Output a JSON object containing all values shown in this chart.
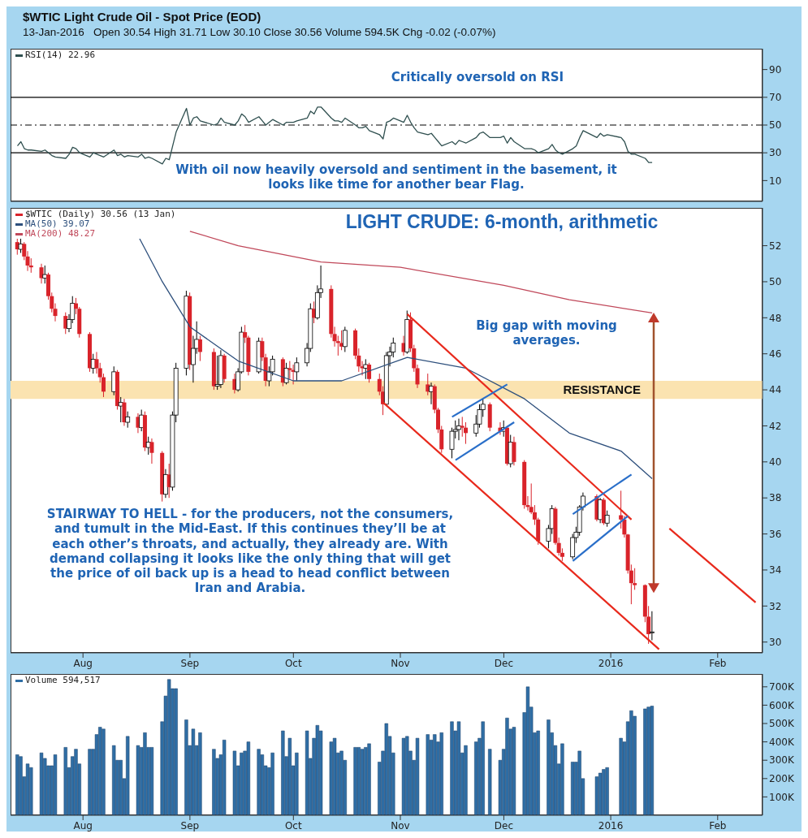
{
  "chart_data": [
    {
      "type": "line",
      "title": "$WTIC Light Crude Oil - Spot Price (EOD)",
      "subtitle": "13-Jan-2016   Open 30.54 High 31.71 Low 30.10 Close 30.56 Volume 594.5K Chg -0.02 (-0.07%)",
      "legend": "top left",
      "tick_labels": "y",
      "x": [
        "2015-07-13",
        "2015-07-14",
        "2015-07-15",
        "2015-07-16",
        "2015-07-17",
        "2015-07-20",
        "2015-07-21",
        "2015-07-22",
        "2015-07-23",
        "2015-07-24",
        "2015-07-27",
        "2015-07-28",
        "2015-07-29",
        "2015-07-30",
        "2015-07-31",
        "2015-08-03",
        "2015-08-04",
        "2015-08-05",
        "2015-08-06",
        "2015-08-07",
        "2015-08-10",
        "2015-08-11",
        "2015-08-12",
        "2015-08-13",
        "2015-08-14",
        "2015-08-17",
        "2015-08-18",
        "2015-08-19",
        "2015-08-20",
        "2015-08-21",
        "2015-08-24",
        "2015-08-25",
        "2015-08-26",
        "2015-08-27",
        "2015-08-28",
        "2015-08-31",
        "2015-09-01",
        "2015-09-02",
        "2015-09-03",
        "2015-09-04",
        "2015-09-08",
        "2015-09-09",
        "2015-09-10",
        "2015-09-11",
        "2015-09-14",
        "2015-09-15",
        "2015-09-16",
        "2015-09-17",
        "2015-09-18",
        "2015-09-21",
        "2015-09-22",
        "2015-09-23",
        "2015-09-24",
        "2015-09-25",
        "2015-09-28",
        "2015-09-29",
        "2015-09-30",
        "2015-10-01",
        "2015-10-02",
        "2015-10-05",
        "2015-10-06",
        "2015-10-07",
        "2015-10-08",
        "2015-10-09",
        "2015-10-12",
        "2015-10-13",
        "2015-10-14",
        "2015-10-15",
        "2015-10-16",
        "2015-10-19",
        "2015-10-20",
        "2015-10-21",
        "2015-10-22",
        "2015-10-23",
        "2015-10-26",
        "2015-10-27",
        "2015-10-28",
        "2015-10-29",
        "2015-10-30",
        "2015-11-02",
        "2015-11-03",
        "2015-11-04",
        "2015-11-05",
        "2015-11-06",
        "2015-11-09",
        "2015-11-10",
        "2015-11-11",
        "2015-11-12",
        "2015-11-13",
        "2015-11-16",
        "2015-11-17",
        "2015-11-18",
        "2015-11-19",
        "2015-11-20",
        "2015-11-23",
        "2015-11-24",
        "2015-11-25",
        "2015-11-27",
        "2015-11-30",
        "2015-12-01",
        "2015-12-02",
        "2015-12-03",
        "2015-12-04",
        "2015-12-07",
        "2015-12-08",
        "2015-12-09",
        "2015-12-10",
        "2015-12-11",
        "2015-12-14",
        "2015-12-15",
        "2015-12-16",
        "2015-12-17",
        "2015-12-18",
        "2015-12-21",
        "2015-12-22",
        "2015-12-23",
        "2015-12-24",
        "2015-12-28",
        "2015-12-29",
        "2015-12-30",
        "2015-12-31",
        "2016-01-04",
        "2016-01-05",
        "2016-01-06",
        "2016-01-07",
        "2016-01-08",
        "2016-01-11",
        "2016-01-12",
        "2016-01-13"
      ],
      "series": [
        {
          "name": "RSI(14) 22.96",
          "color": "#2f4f4f",
          "values": [
            35,
            38,
            33,
            32,
            32,
            31,
            32,
            30,
            28,
            27,
            26,
            29,
            34,
            33,
            30,
            27,
            30,
            29,
            28,
            27,
            32,
            28,
            29,
            27,
            28,
            27,
            29,
            26,
            27,
            26,
            22,
            26,
            25,
            35,
            45,
            62,
            50,
            55,
            56,
            53,
            50,
            51,
            55,
            52,
            50,
            53,
            58,
            56,
            52,
            56,
            53,
            50,
            52,
            54,
            50,
            52,
            52,
            52,
            53,
            55,
            60,
            58,
            63,
            63,
            55,
            53,
            53,
            52,
            55,
            50,
            48,
            48,
            49,
            46,
            43,
            40,
            52,
            53,
            55,
            52,
            57,
            52,
            48,
            45,
            43,
            44,
            41,
            38,
            35,
            38,
            36,
            39,
            38,
            37,
            41,
            44,
            45,
            41,
            41,
            42,
            37,
            41,
            38,
            33,
            33,
            33,
            32,
            30,
            33,
            36,
            32,
            30,
            29,
            33,
            35,
            41,
            46,
            41,
            44,
            42,
            43,
            41,
            38,
            31,
            29,
            29,
            26,
            23,
            23
          ]
        }
      ],
      "xlim": [
        "2015-07-11",
        "2016-02-14"
      ],
      "ylim": [
        -5,
        105
      ],
      "yticks": [
        10,
        30,
        50,
        70,
        90
      ],
      "ref_lines": [
        {
          "axis": "y",
          "value": 70,
          "color": "#000000",
          "line_style": "solid"
        },
        {
          "axis": "y",
          "value": 50,
          "color": "#000000",
          "line_style": "dashed"
        },
        {
          "axis": "y",
          "value": 30,
          "color": "#000000",
          "line_style": "solid"
        }
      ],
      "annotations": [
        "Critically oversold on RSI",
        "With oil now heavily oversold and sentiment in the basement, it looks like time for another bear Flag."
      ]
    },
    {
      "type": "candlestick",
      "title": "LIGHT CRUDE: 6-month, arithmetic",
      "legend": "top left",
      "x": [
        "2015-07-13",
        "2015-07-14",
        "2015-07-15",
        "2015-07-16",
        "2015-07-17",
        "2015-07-20",
        "2015-07-21",
        "2015-07-22",
        "2015-07-23",
        "2015-07-24",
        "2015-07-27",
        "2015-07-28",
        "2015-07-29",
        "2015-07-30",
        "2015-07-31",
        "2015-08-03",
        "2015-08-04",
        "2015-08-05",
        "2015-08-06",
        "2015-08-07",
        "2015-08-10",
        "2015-08-11",
        "2015-08-12",
        "2015-08-13",
        "2015-08-14",
        "2015-08-17",
        "2015-08-18",
        "2015-08-19",
        "2015-08-20",
        "2015-08-21",
        "2015-08-24",
        "2015-08-25",
        "2015-08-26",
        "2015-08-27",
        "2015-08-28",
        "2015-08-31",
        "2015-09-01",
        "2015-09-02",
        "2015-09-03",
        "2015-09-04",
        "2015-09-08",
        "2015-09-09",
        "2015-09-10",
        "2015-09-11",
        "2015-09-14",
        "2015-09-15",
        "2015-09-16",
        "2015-09-17",
        "2015-09-18",
        "2015-09-21",
        "2015-09-22",
        "2015-09-23",
        "2015-09-24",
        "2015-09-25",
        "2015-09-28",
        "2015-09-29",
        "2015-09-30",
        "2015-10-01",
        "2015-10-02",
        "2015-10-05",
        "2015-10-06",
        "2015-10-07",
        "2015-10-08",
        "2015-10-09",
        "2015-10-12",
        "2015-10-13",
        "2015-10-14",
        "2015-10-15",
        "2015-10-16",
        "2015-10-19",
        "2015-10-20",
        "2015-10-21",
        "2015-10-22",
        "2015-10-23",
        "2015-10-26",
        "2015-10-27",
        "2015-10-28",
        "2015-10-29",
        "2015-10-30",
        "2015-11-02",
        "2015-11-03",
        "2015-11-04",
        "2015-11-05",
        "2015-11-06",
        "2015-11-09",
        "2015-11-10",
        "2015-11-11",
        "2015-11-12",
        "2015-11-13",
        "2015-11-16",
        "2015-11-17",
        "2015-11-18",
        "2015-11-19",
        "2015-11-20",
        "2015-11-23",
        "2015-11-24",
        "2015-11-25",
        "2015-11-27",
        "2015-11-30",
        "2015-12-01",
        "2015-12-02",
        "2015-12-03",
        "2015-12-04",
        "2015-12-07",
        "2015-12-08",
        "2015-12-09",
        "2015-12-10",
        "2015-12-11",
        "2015-12-14",
        "2015-12-15",
        "2015-12-16",
        "2015-12-17",
        "2015-12-18",
        "2015-12-21",
        "2015-12-22",
        "2015-12-23",
        "2015-12-24",
        "2015-12-28",
        "2015-12-29",
        "2015-12-30",
        "2015-12-31",
        "2016-01-04",
        "2016-01-05",
        "2016-01-06",
        "2016-01-07",
        "2016-01-08",
        "2016-01-11",
        "2016-01-12",
        "2016-01-13"
      ],
      "series": [
        {
          "name": "$WTIC (Daily) 30.56 (13 Jan)",
          "color": "#d9232a",
          "colors": [
            "#d9232a",
            "#ffffff",
            "#d9232a",
            "#d9232a",
            "#d9232a",
            "#d9232a",
            "#ffffff",
            "#d9232a",
            "#d9232a",
            "#d9232a",
            "#d9232a",
            "#ffffff",
            "#ffffff",
            "#d9232a",
            "#d9232a",
            "#d9232a",
            "#ffffff",
            "#d9232a",
            "#d9232a",
            "#d9232a",
            "#ffffff",
            "#d9232a",
            "#ffffff",
            "#d9232a",
            "#ffffff",
            "#d9232a",
            "#ffffff",
            "#d9232a",
            "#ffffff",
            "#d9232a",
            "#d9232a",
            "#ffffff",
            "#d9232a",
            "#ffffff",
            "#ffffff",
            "#ffffff",
            "#d9232a",
            "#ffffff",
            "#ffffff",
            "#d9232a",
            "#d9232a",
            "#ffffff",
            "#ffffff",
            "#d9232a",
            "#d9232a",
            "#ffffff",
            "#ffffff",
            "#d9232a",
            "#d9232a",
            "#ffffff",
            "#d9232a",
            "#d9232a",
            "#ffffff",
            "#ffffff",
            "#d9232a",
            "#ffffff",
            "#d9232a",
            "#d9232a",
            "#ffffff",
            "#ffffff",
            "#ffffff",
            "#d9232a",
            "#ffffff",
            "#ffffff",
            "#d9232a",
            "#d9232a",
            "#d9232a",
            "#d9232a",
            "#ffffff",
            "#d9232a",
            "#d9232a",
            "#d9232a",
            "#ffffff",
            "#d9232a",
            "#d9232a",
            "#d9232a",
            "#ffffff",
            "#ffffff",
            "#ffffff",
            "#d9232a",
            "#ffffff",
            "#d9232a",
            "#d9232a",
            "#d9232a",
            "#d9232a",
            "#ffffff",
            "#d9232a",
            "#d9232a",
            "#d9232a",
            "#ffffff",
            "#ffffff",
            "#ffffff",
            "#d9232a",
            "#d9232a",
            "#ffffff",
            "#ffffff",
            "#ffffff",
            "#d9232a",
            "#d9232a",
            "#ffffff",
            "#d9232a",
            "#ffffff",
            "#d9232a",
            "#d9232a",
            "#d9232a",
            "#d9232a",
            "#d9232a",
            "#d9232a",
            "#ffffff",
            "#ffffff",
            "#d9232a",
            "#d9232a",
            "#d9232a",
            "#ffffff",
            "#ffffff",
            "#ffffff",
            "#ffffff",
            "#d9232a",
            "#ffffff",
            "#d9232a",
            "#ffffff",
            "#d9232a",
            "#d9232a",
            "#d9232a",
            "#d9232a",
            "#d9232a",
            "#d9232a",
            "#d9232a",
            "#ffffff"
          ],
          "ohlc": [
            [
              52.2,
              52.4,
              51.5,
              51.8
            ],
            [
              51.8,
              52.4,
              51.6,
              52.1
            ],
            [
              52.1,
              52.2,
              51.2,
              51.4
            ],
            [
              51.4,
              51.7,
              50.6,
              50.9
            ],
            [
              50.9,
              51.3,
              50.5,
              50.8
            ],
            [
              50.8,
              51.0,
              49.9,
              50.2
            ],
            [
              50.2,
              50.9,
              49.9,
              50.4
            ],
            [
              50.4,
              50.5,
              49.0,
              49.2
            ],
            [
              49.2,
              49.4,
              48.3,
              48.5
            ],
            [
              48.5,
              48.8,
              47.8,
              48.1
            ],
            [
              48.1,
              48.3,
              47.1,
              47.4
            ],
            [
              47.4,
              48.2,
              47.2,
              47.9
            ],
            [
              47.9,
              49.2,
              47.7,
              48.8
            ],
            [
              48.8,
              49.1,
              48.2,
              48.5
            ],
            [
              48.5,
              48.6,
              46.9,
              47.1
            ],
            [
              47.1,
              47.2,
              45.0,
              45.2
            ],
            [
              45.2,
              46.0,
              44.9,
              45.7
            ],
            [
              45.7,
              46.1,
              44.9,
              45.2
            ],
            [
              45.2,
              45.5,
              44.4,
              44.7
            ],
            [
              44.7,
              44.9,
              43.6,
              43.9
            ],
            [
              43.9,
              45.3,
              43.7,
              45.0
            ],
            [
              45.0,
              45.1,
              42.9,
              43.1
            ],
            [
              43.1,
              43.6,
              42.2,
              43.3
            ],
            [
              43.3,
              43.5,
              42.0,
              42.2
            ],
            [
              42.2,
              42.8,
              41.9,
              42.5
            ],
            [
              42.5,
              42.7,
              41.6,
              41.9
            ],
            [
              41.9,
              42.9,
              41.7,
              42.6
            ],
            [
              42.6,
              42.8,
              40.6,
              40.8
            ],
            [
              40.8,
              41.4,
              40.4,
              41.1
            ],
            [
              41.1,
              41.3,
              39.9,
              40.5
            ],
            [
              40.5,
              40.6,
              37.8,
              38.2
            ],
            [
              38.2,
              39.6,
              38.0,
              39.3
            ],
            [
              39.3,
              39.9,
              38.0,
              38.6
            ],
            [
              38.6,
              42.8,
              38.4,
              42.6
            ],
            [
              42.6,
              45.5,
              42.2,
              45.2
            ],
            [
              45.2,
              49.5,
              44.8,
              49.2
            ],
            [
              49.2,
              49.4,
              45.1,
              45.4
            ],
            [
              45.4,
              47.0,
              44.4,
              46.3
            ],
            [
              46.3,
              47.8,
              46.0,
              46.8
            ],
            [
              46.8,
              47.0,
              45.6,
              46.1
            ],
            [
              46.1,
              46.3,
              44.0,
              44.2
            ],
            [
              44.2,
              45.9,
              44.0,
              44.3
            ],
            [
              44.3,
              46.2,
              44.1,
              45.9
            ],
            [
              45.9,
              46.0,
              44.4,
              44.6
            ],
            [
              44.6,
              44.9,
              43.8,
              44.0
            ],
            [
              44.0,
              45.2,
              43.9,
              45.0
            ],
            [
              45.0,
              47.5,
              44.9,
              47.2
            ],
            [
              47.2,
              47.6,
              46.6,
              46.9
            ],
            [
              46.9,
              47.0,
              44.8,
              45.0
            ],
            [
              45.0,
              46.9,
              44.9,
              46.7
            ],
            [
              46.7,
              46.9,
              45.6,
              45.8
            ],
            [
              45.8,
              46.0,
              44.2,
              44.5
            ],
            [
              44.5,
              45.3,
              44.2,
              45.0
            ],
            [
              45.0,
              45.9,
              44.8,
              45.7
            ],
            [
              45.7,
              45.8,
              44.2,
              44.4
            ],
            [
              44.4,
              45.5,
              44.3,
              45.2
            ],
            [
              45.2,
              45.6,
              44.6,
              45.1
            ],
            [
              45.1,
              45.4,
              44.3,
              45.0
            ],
            [
              45.0,
              45.8,
              44.5,
              45.5
            ],
            [
              45.5,
              46.6,
              45.3,
              46.3
            ],
            [
              46.3,
              48.8,
              46.1,
              48.5
            ],
            [
              48.5,
              48.9,
              47.7,
              48.0
            ],
            [
              48.0,
              49.8,
              47.9,
              49.4
            ],
            [
              49.4,
              50.9,
              49.1,
              49.6
            ],
            [
              49.6,
              49.8,
              46.9,
              47.1
            ],
            [
              47.1,
              47.5,
              46.4,
              46.7
            ],
            [
              46.7,
              47.0,
              45.9,
              46.6
            ],
            [
              46.6,
              47.3,
              46.2,
              46.4
            ],
            [
              46.4,
              47.5,
              46.1,
              47.3
            ],
            [
              47.3,
              47.4,
              45.7,
              45.9
            ],
            [
              45.9,
              46.3,
              45.0,
              45.3
            ],
            [
              45.3,
              45.6,
              44.8,
              45.2
            ],
            [
              45.2,
              45.7,
              44.6,
              45.4
            ],
            [
              45.4,
              45.5,
              44.4,
              44.6
            ],
            [
              44.6,
              44.9,
              43.7,
              43.9
            ],
            [
              43.9,
              44.2,
              42.6,
              43.2
            ],
            [
              43.2,
              46.1,
              43.1,
              45.9
            ],
            [
              45.9,
              46.4,
              45.3,
              46.1
            ],
            [
              46.1,
              46.9,
              45.8,
              46.6
            ],
            [
              46.6,
              47.0,
              45.9,
              46.1
            ],
            [
              46.1,
              48.4,
              46.0,
              47.9
            ],
            [
              47.9,
              48.3,
              46.1,
              46.3
            ],
            [
              46.3,
              46.5,
              45.0,
              45.2
            ],
            [
              45.2,
              45.4,
              44.1,
              44.3
            ],
            [
              44.3,
              44.9,
              43.7,
              43.9
            ],
            [
              43.9,
              44.4,
              43.2,
              44.2
            ],
            [
              44.2,
              44.3,
              42.7,
              42.9
            ],
            [
              42.9,
              43.0,
              41.6,
              41.8
            ],
            [
              41.8,
              42.0,
              40.5,
              40.7
            ],
            [
              40.7,
              41.9,
              40.2,
              41.7
            ],
            [
              41.7,
              42.3,
              41.3,
              41.8
            ],
            [
              41.8,
              42.4,
              41.2,
              42.0
            ],
            [
              42.0,
              42.5,
              41.4,
              41.9
            ],
            [
              41.9,
              42.2,
              41.0,
              41.6
            ],
            [
              41.6,
              42.6,
              41.4,
              42.1
            ],
            [
              42.1,
              43.2,
              41.9,
              42.9
            ],
            [
              42.9,
              43.5,
              42.5,
              43.2
            ],
            [
              43.2,
              43.3,
              41.7,
              41.9
            ],
            [
              41.9,
              42.2,
              41.5,
              41.7
            ],
            [
              41.7,
              42.3,
              41.4,
              41.9
            ],
            [
              41.9,
              42.0,
              39.8,
              39.9
            ],
            [
              39.9,
              41.5,
              39.7,
              41.1
            ],
            [
              41.1,
              41.4,
              39.8,
              40.0
            ],
            [
              40.0,
              40.1,
              37.4,
              37.6
            ],
            [
              37.6,
              38.1,
              37.3,
              37.5
            ],
            [
              37.5,
              38.8,
              37.1,
              37.2
            ],
            [
              37.2,
              37.6,
              36.5,
              36.8
            ],
            [
              36.8,
              36.9,
              35.4,
              35.6
            ],
            [
              35.6,
              36.5,
              35.2,
              36.3
            ],
            [
              36.3,
              37.6,
              36.0,
              37.4
            ],
            [
              37.4,
              37.5,
              35.4,
              35.5
            ],
            [
              35.5,
              35.8,
              34.8,
              34.95
            ],
            [
              34.95,
              35.2,
              34.5,
              34.73
            ],
            [
              34.73,
              36.0,
              34.6,
              35.8
            ],
            [
              35.8,
              36.4,
              35.5,
              36.1
            ],
            [
              36.1,
              37.6,
              35.9,
              37.5
            ],
            [
              37.5,
              38.3,
              37.3,
              38.1
            ],
            [
              38.1,
              38.2,
              36.7,
              36.8
            ],
            [
              36.8,
              38.0,
              36.6,
              37.9
            ],
            [
              37.9,
              38.0,
              36.5,
              36.6
            ],
            [
              36.6,
              37.3,
              36.4,
              37.04
            ],
            [
              37.04,
              38.4,
              36.3,
              36.8
            ],
            [
              36.8,
              37.0,
              35.8,
              35.97
            ],
            [
              35.97,
              36.0,
              33.8,
              33.97
            ],
            [
              33.97,
              34.3,
              32.1,
              33.27
            ],
            [
              33.27,
              34.1,
              32.9,
              33.16
            ],
            [
              33.16,
              33.2,
              31.1,
              31.41
            ],
            [
              31.41,
              32.0,
              29.9,
              30.44
            ],
            [
              30.54,
              31.71,
              30.1,
              30.56
            ]
          ]
        },
        {
          "type": "line",
          "name": "MA(50) 39.07",
          "color": "#2d4f7c",
          "x": [
            "2015-08-13",
            "2015-08-24",
            "2015-09-01",
            "2015-09-15",
            "2015-10-01",
            "2015-10-15",
            "2015-11-03",
            "2015-11-20",
            "2015-12-07",
            "2015-12-20",
            "2016-01-04",
            "2016-01-13"
          ],
          "values": [
            54,
            50,
            47.5,
            45.6,
            44.5,
            44.5,
            45.8,
            45.2,
            43.5,
            41.6,
            40.6,
            39.07
          ]
        },
        {
          "type": "line",
          "name": "MA(200) 48.27",
          "color": "#c0485a",
          "x": [
            "2015-09-01",
            "2015-09-15",
            "2015-10-09",
            "2015-11-01",
            "2015-12-01",
            "2015-12-20",
            "2016-01-13"
          ],
          "values": [
            52.8,
            52.0,
            51.1,
            50.8,
            49.8,
            49.0,
            48.27
          ]
        },
        {
          "type": "line",
          "color": "#e8291c",
          "x": [
            "2015-11-03",
            "2016-01-07"
          ],
          "values": [
            48.2,
            36.8
          ]
        },
        {
          "type": "line",
          "color": "#e8291c",
          "x": [
            "2015-10-27",
            "2016-01-15"
          ],
          "values": [
            43.3,
            29.6
          ]
        },
        {
          "type": "line",
          "color": "#e8291c",
          "x": [
            "2016-01-18",
            "2016-02-12"
          ],
          "values": [
            36.3,
            32.2
          ]
        },
        {
          "type": "line",
          "color": "#2a6fc9",
          "x": [
            "2015-11-16",
            "2015-12-02"
          ],
          "values": [
            42.5,
            44.3
          ]
        },
        {
          "type": "line",
          "color": "#2a6fc9",
          "x": [
            "2015-11-17",
            "2015-12-04"
          ],
          "values": [
            40.1,
            42.2
          ]
        },
        {
          "type": "line",
          "color": "#2a6fc9",
          "x": [
            "2015-12-21",
            "2016-01-07"
          ],
          "values": [
            37.1,
            39.3
          ]
        },
        {
          "type": "line",
          "color": "#2a6fc9",
          "x": [
            "2015-12-21",
            "2016-01-06"
          ],
          "values": [
            34.5,
            37.0
          ]
        }
      ],
      "xlim": [
        "2015-07-11",
        "2016-02-14"
      ],
      "xticks": [
        {
          "value": "2015-08-01",
          "label": "Aug"
        },
        {
          "value": "2015-09-01",
          "label": "Sep"
        },
        {
          "value": "2015-10-01",
          "label": "Oct"
        },
        {
          "value": "2015-11-01",
          "label": "Nov"
        },
        {
          "value": "2015-12-01",
          "label": "Dec"
        },
        {
          "value": "2016-01-01",
          "label": "2016"
        },
        {
          "value": "2016-02-01",
          "label": "Feb"
        }
      ],
      "ylim": [
        29.4,
        54.1
      ],
      "yticks": [
        30,
        32,
        34,
        36,
        38,
        40,
        42,
        44,
        46,
        48,
        50,
        52
      ],
      "bands": [
        {
          "axis": "y",
          "from": 43.5,
          "to": 44.5,
          "label": "RESISTANCE",
          "color": "#fbe3b0"
        }
      ],
      "annotations": [
        "Big gap with moving averages.",
        "STAIRWAY TO HELL - for the producers, not the consumers, and tumult in the Mid-East. If this continues they’ll be at each other’s throats, and actually, they already are. With demand collapsing it looks like the only thing that will get the price of oil back up is a head to head conflict between Iran and Arabia."
      ]
    },
    {
      "type": "bar",
      "legend": "top left",
      "x": [
        "2015-07-13",
        "2015-07-14",
        "2015-07-15",
        "2015-07-16",
        "2015-07-17",
        "2015-07-20",
        "2015-07-21",
        "2015-07-22",
        "2015-07-23",
        "2015-07-24",
        "2015-07-27",
        "2015-07-28",
        "2015-07-29",
        "2015-07-30",
        "2015-07-31",
        "2015-08-03",
        "2015-08-04",
        "2015-08-05",
        "2015-08-06",
        "2015-08-07",
        "2015-08-10",
        "2015-08-11",
        "2015-08-12",
        "2015-08-13",
        "2015-08-14",
        "2015-08-17",
        "2015-08-18",
        "2015-08-19",
        "2015-08-20",
        "2015-08-21",
        "2015-08-24",
        "2015-08-25",
        "2015-08-26",
        "2015-08-27",
        "2015-08-28",
        "2015-08-31",
        "2015-09-01",
        "2015-09-02",
        "2015-09-03",
        "2015-09-04",
        "2015-09-08",
        "2015-09-09",
        "2015-09-10",
        "2015-09-11",
        "2015-09-14",
        "2015-09-15",
        "2015-09-16",
        "2015-09-17",
        "2015-09-18",
        "2015-09-21",
        "2015-09-22",
        "2015-09-23",
        "2015-09-24",
        "2015-09-25",
        "2015-09-28",
        "2015-09-29",
        "2015-09-30",
        "2015-10-01",
        "2015-10-02",
        "2015-10-05",
        "2015-10-06",
        "2015-10-07",
        "2015-10-08",
        "2015-10-09",
        "2015-10-12",
        "2015-10-13",
        "2015-10-14",
        "2015-10-15",
        "2015-10-16",
        "2015-10-19",
        "2015-10-20",
        "2015-10-21",
        "2015-10-22",
        "2015-10-23",
        "2015-10-26",
        "2015-10-27",
        "2015-10-28",
        "2015-10-29",
        "2015-10-30",
        "2015-11-02",
        "2015-11-03",
        "2015-11-04",
        "2015-11-05",
        "2015-11-06",
        "2015-11-09",
        "2015-11-10",
        "2015-11-11",
        "2015-11-12",
        "2015-11-13",
        "2015-11-16",
        "2015-11-17",
        "2015-11-18",
        "2015-11-19",
        "2015-11-20",
        "2015-11-23",
        "2015-11-24",
        "2015-11-25",
        "2015-11-27",
        "2015-11-30",
        "2015-12-01",
        "2015-12-02",
        "2015-12-03",
        "2015-12-04",
        "2015-12-07",
        "2015-12-08",
        "2015-12-09",
        "2015-12-10",
        "2015-12-11",
        "2015-12-14",
        "2015-12-15",
        "2015-12-16",
        "2015-12-17",
        "2015-12-18",
        "2015-12-21",
        "2015-12-22",
        "2015-12-23",
        "2015-12-24",
        "2015-12-28",
        "2015-12-29",
        "2015-12-30",
        "2015-12-31",
        "2016-01-04",
        "2016-01-05",
        "2016-01-06",
        "2016-01-07",
        "2016-01-08",
        "2016-01-11",
        "2016-01-12",
        "2016-01-13"
      ],
      "series": [
        {
          "name": "Volume 594,517",
          "color": "#2f6ea5",
          "values": [
            330,
            320,
            210,
            280,
            260,
            340,
            310,
            270,
            270,
            330,
            370,
            260,
            320,
            360,
            280,
            360,
            360,
            440,
            480,
            470,
            380,
            300,
            300,
            200,
            430,
            380,
            370,
            450,
            370,
            370,
            510,
            650,
            740,
            690,
            690,
            520,
            380,
            470,
            380,
            450,
            360,
            310,
            330,
            410,
            350,
            270,
            340,
            350,
            400,
            360,
            330,
            270,
            260,
            340,
            460,
            320,
            420,
            270,
            340,
            460,
            310,
            420,
            490,
            460,
            400,
            420,
            340,
            350,
            300,
            370,
            370,
            360,
            370,
            390,
            290,
            350,
            500,
            430,
            340,
            420,
            430,
            350,
            300,
            420,
            440,
            410,
            440,
            400,
            450,
            510,
            460,
            510,
            340,
            380,
            400,
            420,
            510,
            360,
            300,
            360,
            530,
            470,
            480,
            560,
            700,
            590,
            450,
            460,
            520,
            450,
            380,
            280,
            390,
            290,
            290,
            350,
            200,
            210,
            230,
            250,
            260,
            420,
            400,
            510,
            570,
            540,
            580,
            590,
            595
          ]
        }
      ],
      "xlim": [
        "2015-07-11",
        "2016-02-14"
      ],
      "xticks": [
        {
          "value": "2015-08-01",
          "label": "Aug"
        },
        {
          "value": "2015-09-01",
          "label": "Sep"
        },
        {
          "value": "2015-10-01",
          "label": "Oct"
        },
        {
          "value": "2015-11-01",
          "label": "Nov"
        },
        {
          "value": "2015-12-01",
          "label": "Dec"
        },
        {
          "value": "2016-01-01",
          "label": "2016"
        },
        {
          "value": "2016-02-01",
          "label": "Feb"
        }
      ],
      "ylim": [
        0,
        770
      ],
      "yticks": [
        {
          "value": 100,
          "label": "100K"
        },
        {
          "value": 200,
          "label": "200K"
        },
        {
          "value": 300,
          "label": "300K"
        },
        {
          "value": 400,
          "label": "400K"
        },
        {
          "value": 500,
          "label": "500K"
        },
        {
          "value": 600,
          "label": "600K"
        },
        {
          "value": 700,
          "label": "700K"
        }
      ]
    }
  ]
}
